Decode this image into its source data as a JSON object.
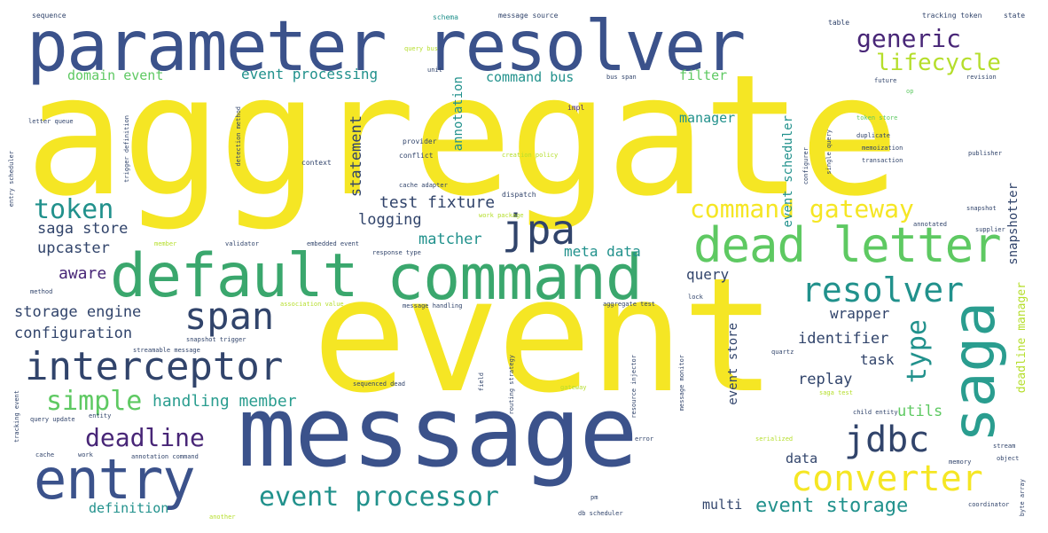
{
  "palette": {
    "yellow": "#f5e624",
    "lime": "#b5de2b",
    "green": "#5ec962",
    "teal": "#21918c",
    "cyan": "#2a9d8f",
    "blue": "#3b528b",
    "navy": "#31446b",
    "purple": "#482677",
    "dark": "#440154"
  },
  "words": {
    "aggregate": "aggregate",
    "event": "event",
    "message": "message",
    "parameter_resolver": "parameter resolver",
    "command": "command",
    "default": "default",
    "saga": "saga",
    "dead_letter": "dead letter",
    "entry": "entry",
    "interceptor": "interceptor",
    "span": "span",
    "resolver": "resolver",
    "converter": "converter",
    "jdbc": "jdbc",
    "jpa": "jpa",
    "event_processor": "event processor",
    "generic": "generic",
    "lifecycle": "lifecycle",
    "command_gateway": "command gateway",
    "token": "token",
    "simple": "simple",
    "deadline": "deadline",
    "type": "type",
    "event_storage": "event storage",
    "handling_member": "handling member",
    "storage_engine": "storage engine",
    "configuration": "configuration",
    "saga_store": "saga store",
    "upcaster": "upcaster",
    "aware": "aware",
    "test_fixture": "test fixture",
    "logging": "logging",
    "matcher": "matcher",
    "meta_data": "meta data",
    "query": "query",
    "wrapper": "wrapper",
    "identifier": "identifier",
    "task": "task",
    "replay": "replay",
    "utils": "utils",
    "data": "data",
    "multi": "multi",
    "definition": "definition",
    "event_processing": "event processing",
    "domain_event": "domain event",
    "command_bus": "command bus",
    "filter": "filter",
    "manager": "manager",
    "statement": "statement",
    "annotation": "annotation",
    "event_scheduler": "event scheduler",
    "event_store": "event store",
    "snapshotter": "snapshotter",
    "deadline_manager": "deadline manager",
    "sequence": "sequence",
    "schema": "schema",
    "message_source": "message source",
    "tracking_token": "tracking token",
    "state": "state",
    "table": "table",
    "query_bus": "query bus",
    "unit": "unit",
    "bus_span": "bus span",
    "future": "future",
    "op": "op",
    "impl": "impl",
    "provider": "provider",
    "conflict": "conflict",
    "context": "context",
    "creation_policy": "creation policy",
    "cache_adapter": "cache adapter",
    "dispatch": "dispatch",
    "work_package": "work package",
    "letter_queue": "letter queue",
    "trigger_definition": "trigger definition",
    "detection_method": "detection method",
    "entry_scheduler": "entry scheduler",
    "token_store": "token store",
    "duplicate": "duplicate",
    "memoization": "memoization",
    "transaction": "transaction",
    "publisher": "publisher",
    "configurer": "configurer",
    "single_query": "single query",
    "revision": "revision",
    "annotated": "annotated",
    "snapshot": "snapshot",
    "supplier": "supplier",
    "lock": "lock",
    "member": "member",
    "validator": "validator",
    "embedded_event": "embedded event",
    "response_type": "response type",
    "method": "method",
    "association_value": "association value",
    "message_handling": "message handling",
    "aggregate_test": "aggregate test",
    "snapshot_trigger": "snapshot trigger",
    "streamable_message": "streamable message",
    "quartz": "quartz",
    "sequenced_dead": "sequenced dead",
    "routing_strategy": "routing strategy",
    "resource_injector": "resource injector",
    "message_monitor": "message monitor",
    "field": "field",
    "gateway": "gateway",
    "saga_test": "saga test",
    "child_entity": "child entity",
    "tracking_event": "tracking event",
    "query_update": "query update",
    "entity": "entity",
    "error": "error",
    "serialized": "serialized",
    "stream": "stream",
    "object": "object",
    "cache": "cache",
    "work": "work",
    "annotation_command": "annotation command",
    "memory": "memory",
    "another": "another",
    "db_scheduler": "db scheduler",
    "coordinator": "coordinator",
    "byte_array": "byte array",
    "pm": "pm"
  }
}
